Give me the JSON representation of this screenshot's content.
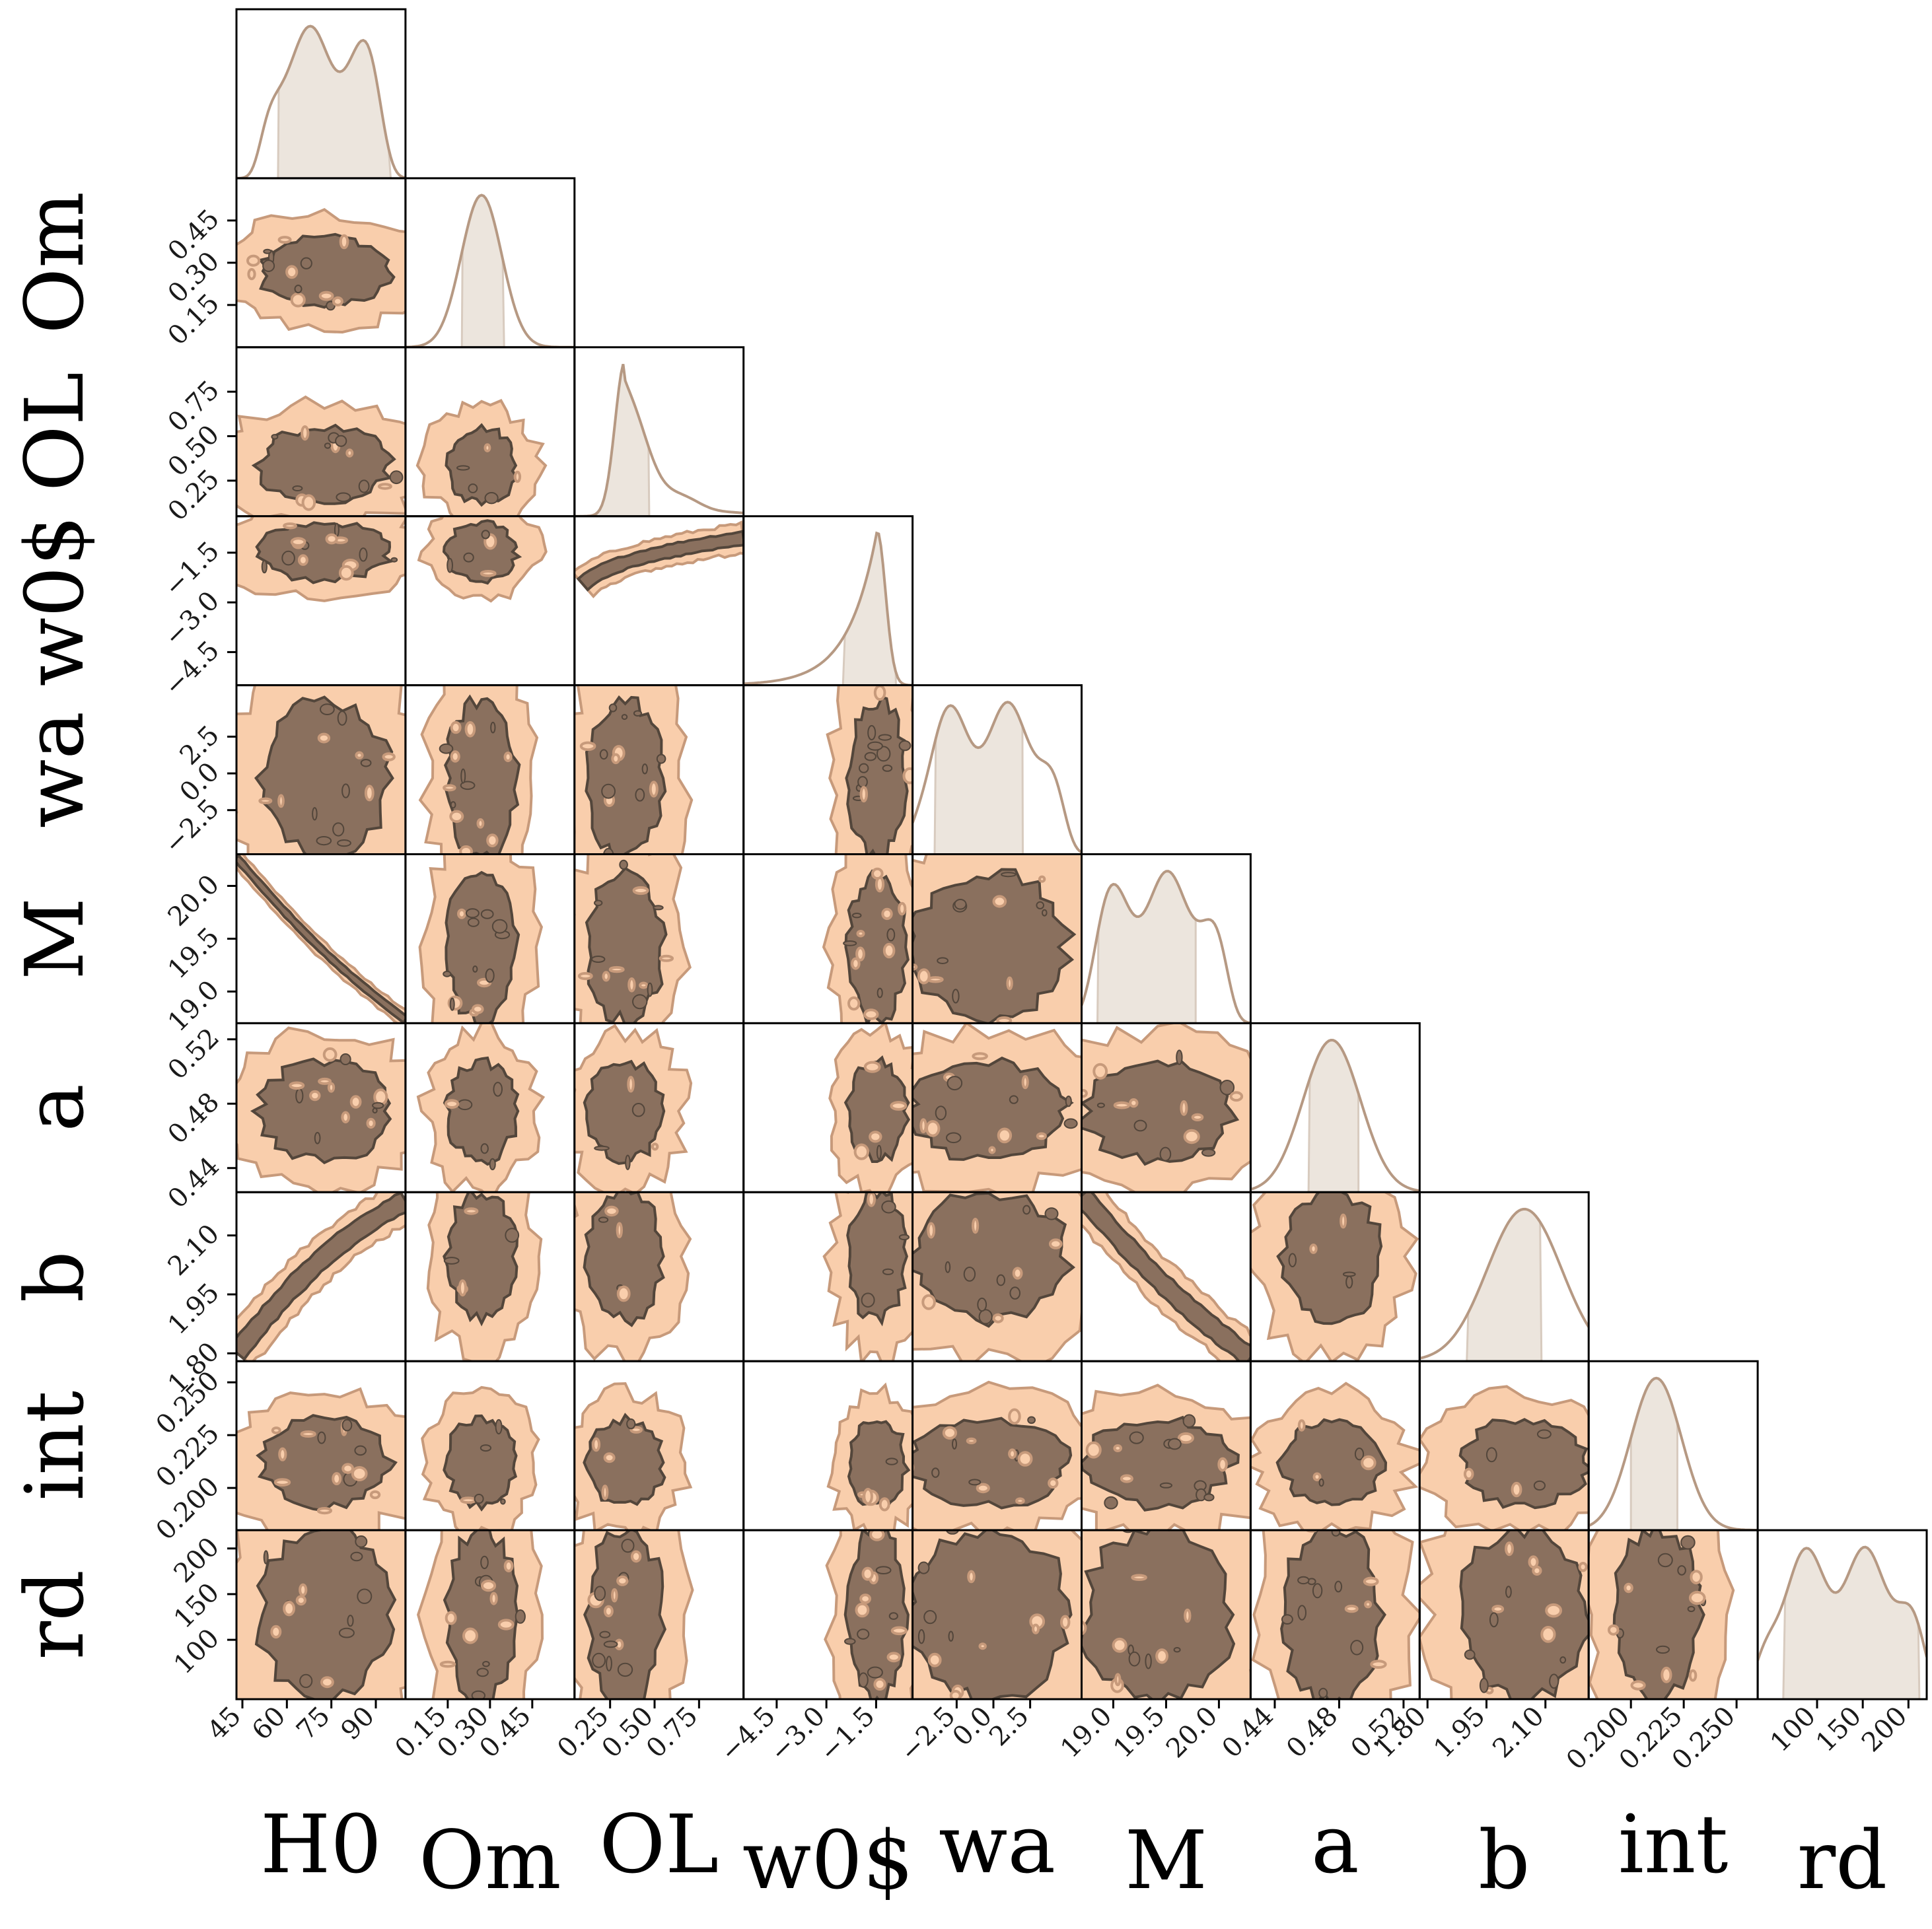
{
  "chart_data": {
    "type": "corner",
    "parameters": [
      {
        "key": "H0",
        "label": "H0",
        "range": [
          43,
          100
        ],
        "ticks": [
          "45",
          "60",
          "75",
          "90"
        ],
        "tick_values": [
          45,
          60,
          75,
          90
        ],
        "credible": [
          57,
          95
        ],
        "peak": 89
      },
      {
        "key": "Om",
        "label": "Om",
        "range": [
          0.0,
          0.6
        ],
        "ticks": [
          "0.15",
          "0.30",
          "0.45"
        ],
        "tick_values": [
          0.15,
          0.3,
          0.45
        ],
        "credible": [
          0.2,
          0.35
        ],
        "peak": 0.27
      },
      {
        "key": "OL",
        "label": "OL",
        "range": [
          0.05,
          1.0
        ],
        "ticks": [
          "0.25",
          "0.50",
          "0.75"
        ],
        "tick_values": [
          0.25,
          0.5,
          0.75
        ],
        "credible": [
          0.17,
          0.47
        ],
        "peak": 0.23
      },
      {
        "key": "w0",
        "label": "w0$",
        "range": [
          -5.5,
          -0.4
        ],
        "ticks": [
          "−4.5",
          "−3.0",
          "−1.5"
        ],
        "tick_values": [
          -4.5,
          -3.0,
          -1.5
        ],
        "credible": [
          -2.5,
          -0.9
        ],
        "peak": -1.1
      },
      {
        "key": "wa",
        "label": "wa",
        "range": [
          -5.5,
          6.0
        ],
        "ticks": [
          "−2.5",
          "0.0",
          "2.5"
        ],
        "tick_values": [
          -2.5,
          0.0,
          2.5
        ],
        "credible": [
          -4.0,
          2.0
        ],
        "peak": 1.0
      },
      {
        "key": "M",
        "label": "M",
        "range": [
          18.7,
          20.3
        ],
        "ticks": [
          "19.0",
          "19.5",
          "20.0"
        ],
        "tick_values": [
          19.0,
          19.5,
          20.0
        ],
        "credible": [
          18.85,
          19.78
        ],
        "peak": 18.95
      },
      {
        "key": "a",
        "label": "a",
        "range": [
          0.425,
          0.53
        ],
        "ticks": [
          "0.44",
          "0.48",
          "0.52"
        ],
        "tick_values": [
          0.44,
          0.48,
          0.52
        ],
        "credible": [
          0.461,
          0.492
        ],
        "peak": 0.475
      },
      {
        "key": "b",
        "label": "b",
        "range": [
          1.78,
          2.21
        ],
        "ticks": [
          "1.80",
          "1.95",
          "2.10"
        ],
        "tick_values": [
          1.8,
          1.95,
          2.1
        ],
        "credible": [
          1.9,
          2.09
        ],
        "peak": 2.07
      },
      {
        "key": "int",
        "label": "int",
        "range": [
          0.18,
          0.26
        ],
        "ticks": [
          "0.200",
          "0.225",
          "0.250"
        ],
        "tick_values": [
          0.2,
          0.225,
          0.25
        ],
        "credible": [
          0.2,
          0.222
        ],
        "peak": 0.212
      },
      {
        "key": "rd",
        "label": "rd",
        "range": [
          35,
          220
        ],
        "ticks": [
          "100",
          "150",
          "200"
        ],
        "tick_values": [
          100,
          150,
          200
        ],
        "credible": [
          63,
          212
        ],
        "peak": 150
      }
    ],
    "colors": {
      "outer_contour_fill": "#f9ceac",
      "outer_contour_edge": "#c79a7b",
      "inner_contour_fill": "#8a705e",
      "inner_contour_edge": "#53463b",
      "histogram_line": "#b69983",
      "credible_band": "#ece5dd"
    }
  }
}
